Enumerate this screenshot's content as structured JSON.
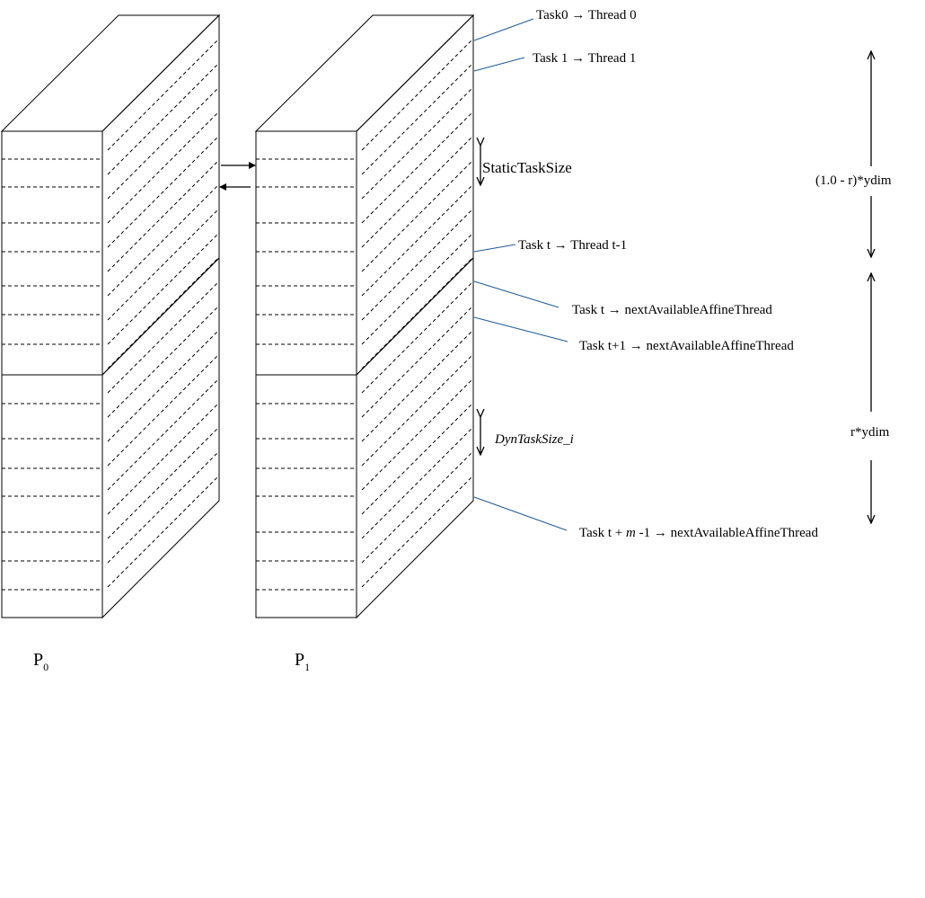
{
  "colors": {
    "blue_front": "#4f81bd",
    "blue_top": "#558ed5",
    "blue_side": "#3f6ca7",
    "red_front": "#c0504d",
    "red_side": "#a84543",
    "edge": "#000000",
    "leader": "#1f5a96"
  },
  "processors": [
    {
      "label": "P",
      "sub": "0"
    },
    {
      "label": "P",
      "sub": "1"
    }
  ],
  "labels": {
    "task0": "Task0 → Thread 0",
    "task1": "Task 1 → Thread 1",
    "static_task_size": "StaticTaskSize",
    "task_t_thread": "Task t → Thread t-1",
    "task_t_affine": "Task t → nextAvailableAffineThread",
    "task_t1_affine": "Task t+1 → nextAvailableAffineThread",
    "dyn_task_size": "DynTaskSize_i",
    "task_tm_prefix": "Task t + ",
    "task_tm_m": "m",
    "task_tm_suffix": " -1 → nextAvailableAffineThread",
    "static_dim": "(1.0 - r)*ydim",
    "dyn_dim": "r*ydim"
  }
}
